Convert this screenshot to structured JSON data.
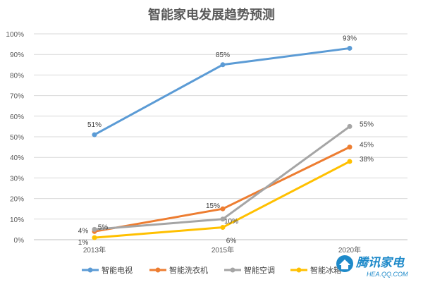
{
  "colors": {
    "series": [
      "#5b9bd5",
      "#ed7d31",
      "#a5a5a5",
      "#ffc000"
    ],
    "grid": "#d9d9d9",
    "axis": "#bfbfbf"
  },
  "chart_data": {
    "type": "line",
    "title": "智能家电发展趋势预测",
    "xlabel": "",
    "ylabel": "",
    "categories": [
      "2013年",
      "2015年",
      "2020年"
    ],
    "ylim": [
      0,
      100
    ],
    "yticks": [
      "0%",
      "10%",
      "20%",
      "30%",
      "40%",
      "50%",
      "60%",
      "70%",
      "80%",
      "90%",
      "100%"
    ],
    "grid": true,
    "legend_position": "bottom",
    "series": [
      {
        "name": "智能电视",
        "values": [
          51,
          85,
          93
        ],
        "labels": [
          "51%",
          "85%",
          "93%"
        ]
      },
      {
        "name": "智能洗衣机",
        "values": [
          4,
          15,
          45
        ],
        "labels": [
          "4%",
          "15%",
          "45%"
        ]
      },
      {
        "name": "智能空调",
        "values": [
          5,
          10,
          55
        ],
        "labels": [
          "5%",
          "10%",
          "55%"
        ]
      },
      {
        "name": "智能冰箱",
        "values": [
          1,
          6,
          38
        ],
        "labels": [
          "1%",
          "6%",
          "38%"
        ]
      }
    ]
  },
  "watermark": {
    "brand": "腾讯家电",
    "site": "HEA.QQ.COM"
  }
}
